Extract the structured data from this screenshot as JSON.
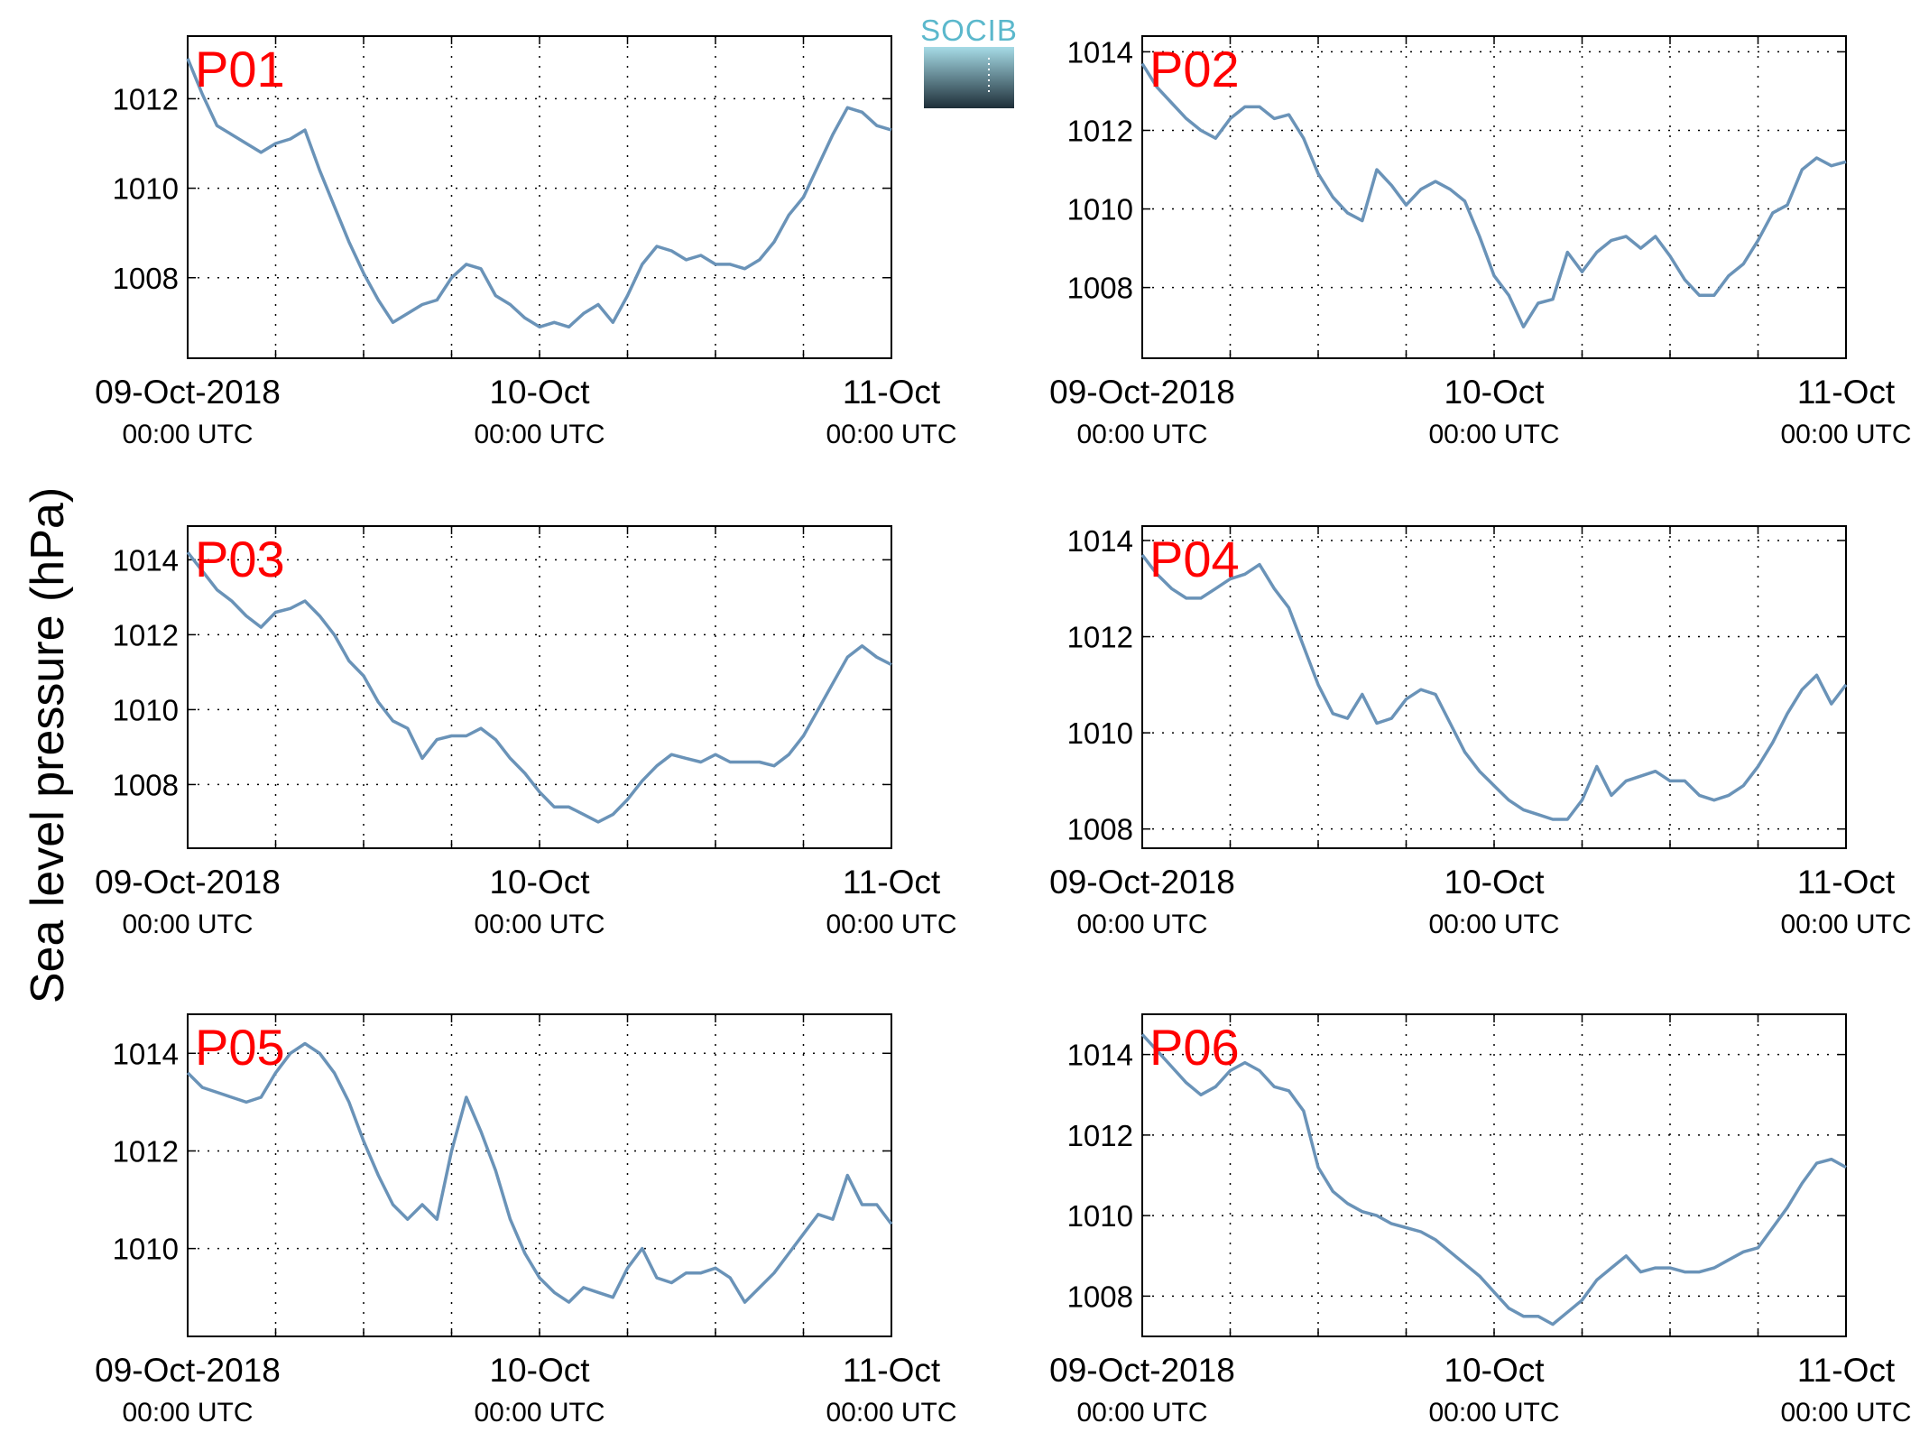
{
  "logo": {
    "text": "SOCIB",
    "text_color": "#5bb8cc",
    "gradient_top": "#a6dbe6",
    "gradient_bottom": "#1e2e38"
  },
  "ylabel": "Sea level pressure (hPa)",
  "colors": {
    "line": "#6a93b8",
    "label": "#ff0000",
    "axis": "#000000"
  },
  "x_ticks": [
    {
      "date": "09-Oct-2018",
      "time": "00:00 UTC"
    },
    {
      "date": "10-Oct",
      "time": "00:00 UTC"
    },
    {
      "date": "11-Oct",
      "time": "00:00 UTC"
    }
  ],
  "chart_data": [
    {
      "type": "line",
      "label": "P01",
      "grid": true,
      "x_range_hours": [
        0,
        48
      ],
      "ylim": [
        1006.2,
        1013.4
      ],
      "yticks": [
        1008,
        1010,
        1012
      ],
      "x": [
        0,
        1,
        2,
        3,
        4,
        5,
        6,
        7,
        8,
        9,
        10,
        11,
        12,
        13,
        14,
        15,
        16,
        17,
        18,
        19,
        20,
        21,
        22,
        23,
        24,
        25,
        26,
        27,
        28,
        29,
        30,
        31,
        32,
        33,
        34,
        35,
        36,
        37,
        38,
        39,
        40,
        41,
        42,
        43,
        44,
        45,
        46,
        47,
        48
      ],
      "y": [
        1012.9,
        1012.1,
        1011.4,
        1011.2,
        1011.0,
        1010.8,
        1011.0,
        1011.1,
        1011.3,
        1010.4,
        1009.6,
        1008.8,
        1008.1,
        1007.5,
        1007.0,
        1007.2,
        1007.4,
        1007.5,
        1008.0,
        1008.3,
        1008.2,
        1007.6,
        1007.4,
        1007.1,
        1006.9,
        1007.0,
        1006.9,
        1007.2,
        1007.4,
        1007.0,
        1007.6,
        1008.3,
        1008.7,
        1008.6,
        1008.4,
        1008.5,
        1008.3,
        1008.3,
        1008.2,
        1008.4,
        1008.8,
        1009.4,
        1009.8,
        1010.5,
        1011.2,
        1011.8,
        1011.7,
        1011.4,
        1011.3
      ]
    },
    {
      "type": "line",
      "label": "P02",
      "grid": true,
      "x_range_hours": [
        0,
        48
      ],
      "ylim": [
        1006.2,
        1014.4
      ],
      "yticks": [
        1008,
        1010,
        1012,
        1014
      ],
      "x": [
        0,
        1,
        2,
        3,
        4,
        5,
        6,
        7,
        8,
        9,
        10,
        11,
        12,
        13,
        14,
        15,
        16,
        17,
        18,
        19,
        20,
        21,
        22,
        23,
        24,
        25,
        26,
        27,
        28,
        29,
        30,
        31,
        32,
        33,
        34,
        35,
        36,
        37,
        38,
        39,
        40,
        41,
        42,
        43,
        44,
        45,
        46,
        47,
        48
      ],
      "y": [
        1013.7,
        1013.1,
        1012.7,
        1012.3,
        1012.0,
        1011.8,
        1012.3,
        1012.6,
        1012.6,
        1012.3,
        1012.4,
        1011.8,
        1010.9,
        1010.3,
        1009.9,
        1009.7,
        1011.0,
        1010.6,
        1010.1,
        1010.5,
        1010.7,
        1010.5,
        1010.2,
        1009.3,
        1008.3,
        1007.8,
        1007.0,
        1007.6,
        1007.7,
        1008.9,
        1008.4,
        1008.9,
        1009.2,
        1009.3,
        1009.0,
        1009.3,
        1008.8,
        1008.2,
        1007.8,
        1007.8,
        1008.3,
        1008.6,
        1009.2,
        1009.9,
        1010.1,
        1011.0,
        1011.3,
        1011.1,
        1011.2
      ]
    },
    {
      "type": "line",
      "label": "P03",
      "grid": true,
      "x_range_hours": [
        0,
        48
      ],
      "ylim": [
        1006.3,
        1014.9
      ],
      "yticks": [
        1008,
        1010,
        1012,
        1014
      ],
      "x": [
        0,
        1,
        2,
        3,
        4,
        5,
        6,
        7,
        8,
        9,
        10,
        11,
        12,
        13,
        14,
        15,
        16,
        17,
        18,
        19,
        20,
        21,
        22,
        23,
        24,
        25,
        26,
        27,
        28,
        29,
        30,
        31,
        32,
        33,
        34,
        35,
        36,
        37,
        38,
        39,
        40,
        41,
        42,
        43,
        44,
        45,
        46,
        47,
        48
      ],
      "y": [
        1014.2,
        1013.7,
        1013.2,
        1012.9,
        1012.5,
        1012.2,
        1012.6,
        1012.7,
        1012.9,
        1012.5,
        1012.0,
        1011.3,
        1010.9,
        1010.2,
        1009.7,
        1009.5,
        1008.7,
        1009.2,
        1009.3,
        1009.3,
        1009.5,
        1009.2,
        1008.7,
        1008.3,
        1007.8,
        1007.4,
        1007.4,
        1007.2,
        1007.0,
        1007.2,
        1007.6,
        1008.1,
        1008.5,
        1008.8,
        1008.7,
        1008.6,
        1008.8,
        1008.6,
        1008.6,
        1008.6,
        1008.5,
        1008.8,
        1009.3,
        1010.0,
        1010.7,
        1011.4,
        1011.7,
        1011.4,
        1011.2
      ]
    },
    {
      "type": "line",
      "label": "P04",
      "grid": true,
      "x_range_hours": [
        0,
        48
      ],
      "ylim": [
        1007.6,
        1014.3
      ],
      "yticks": [
        1008,
        1010,
        1012,
        1014
      ],
      "x": [
        0,
        1,
        2,
        3,
        4,
        5,
        6,
        7,
        8,
        9,
        10,
        11,
        12,
        13,
        14,
        15,
        16,
        17,
        18,
        19,
        20,
        21,
        22,
        23,
        24,
        25,
        26,
        27,
        28,
        29,
        30,
        31,
        32,
        33,
        34,
        35,
        36,
        37,
        38,
        39,
        40,
        41,
        42,
        43,
        44,
        45,
        46,
        47,
        48
      ],
      "y": [
        1013.7,
        1013.3,
        1013.0,
        1012.8,
        1012.8,
        1013.0,
        1013.2,
        1013.3,
        1013.5,
        1013.0,
        1012.6,
        1011.8,
        1011.0,
        1010.4,
        1010.3,
        1010.8,
        1010.2,
        1010.3,
        1010.7,
        1010.9,
        1010.8,
        1010.2,
        1009.6,
        1009.2,
        1008.9,
        1008.6,
        1008.4,
        1008.3,
        1008.2,
        1008.2,
        1008.6,
        1009.3,
        1008.7,
        1009.0,
        1009.1,
        1009.2,
        1009.0,
        1009.0,
        1008.7,
        1008.6,
        1008.7,
        1008.9,
        1009.3,
        1009.8,
        1010.4,
        1010.9,
        1011.2,
        1010.6,
        1011.0
      ]
    },
    {
      "type": "line",
      "label": "P05",
      "grid": true,
      "x_range_hours": [
        0,
        48
      ],
      "ylim": [
        1008.2,
        1014.8
      ],
      "yticks": [
        1010,
        1012,
        1014
      ],
      "x": [
        0,
        1,
        2,
        3,
        4,
        5,
        6,
        7,
        8,
        9,
        10,
        11,
        12,
        13,
        14,
        15,
        16,
        17,
        18,
        19,
        20,
        21,
        22,
        23,
        24,
        25,
        26,
        27,
        28,
        29,
        30,
        31,
        32,
        33,
        34,
        35,
        36,
        37,
        38,
        39,
        40,
        41,
        42,
        43,
        44,
        45,
        46,
        47,
        48
      ],
      "y": [
        1013.6,
        1013.3,
        1013.2,
        1013.1,
        1013.0,
        1013.1,
        1013.6,
        1014.0,
        1014.2,
        1014.0,
        1013.6,
        1013.0,
        1012.2,
        1011.5,
        1010.9,
        1010.6,
        1010.9,
        1010.6,
        1012.0,
        1013.1,
        1012.4,
        1011.6,
        1010.6,
        1009.9,
        1009.4,
        1009.1,
        1008.9,
        1009.2,
        1009.1,
        1009.0,
        1009.6,
        1010.0,
        1009.4,
        1009.3,
        1009.5,
        1009.5,
        1009.6,
        1009.4,
        1008.9,
        1009.2,
        1009.5,
        1009.9,
        1010.3,
        1010.7,
        1010.6,
        1011.5,
        1010.9,
        1010.9,
        1010.5
      ]
    },
    {
      "type": "line",
      "label": "P06",
      "grid": true,
      "x_range_hours": [
        0,
        48
      ],
      "ylim": [
        1007.0,
        1015.0
      ],
      "yticks": [
        1008,
        1010,
        1012,
        1014
      ],
      "x": [
        0,
        1,
        2,
        3,
        4,
        5,
        6,
        7,
        8,
        9,
        10,
        11,
        12,
        13,
        14,
        15,
        16,
        17,
        18,
        19,
        20,
        21,
        22,
        23,
        24,
        25,
        26,
        27,
        28,
        29,
        30,
        31,
        32,
        33,
        34,
        35,
        36,
        37,
        38,
        39,
        40,
        41,
        42,
        43,
        44,
        45,
        46,
        47,
        48
      ],
      "y": [
        1014.5,
        1014.1,
        1013.7,
        1013.3,
        1013.0,
        1013.2,
        1013.6,
        1013.8,
        1013.6,
        1013.2,
        1013.1,
        1012.6,
        1011.2,
        1010.6,
        1010.3,
        1010.1,
        1010.0,
        1009.8,
        1009.7,
        1009.6,
        1009.4,
        1009.1,
        1008.8,
        1008.5,
        1008.1,
        1007.7,
        1007.5,
        1007.5,
        1007.3,
        1007.6,
        1007.9,
        1008.4,
        1008.7,
        1009.0,
        1008.6,
        1008.7,
        1008.7,
        1008.6,
        1008.6,
        1008.7,
        1008.9,
        1009.1,
        1009.2,
        1009.7,
        1010.2,
        1010.8,
        1011.3,
        1011.4,
        1011.2
      ]
    }
  ]
}
